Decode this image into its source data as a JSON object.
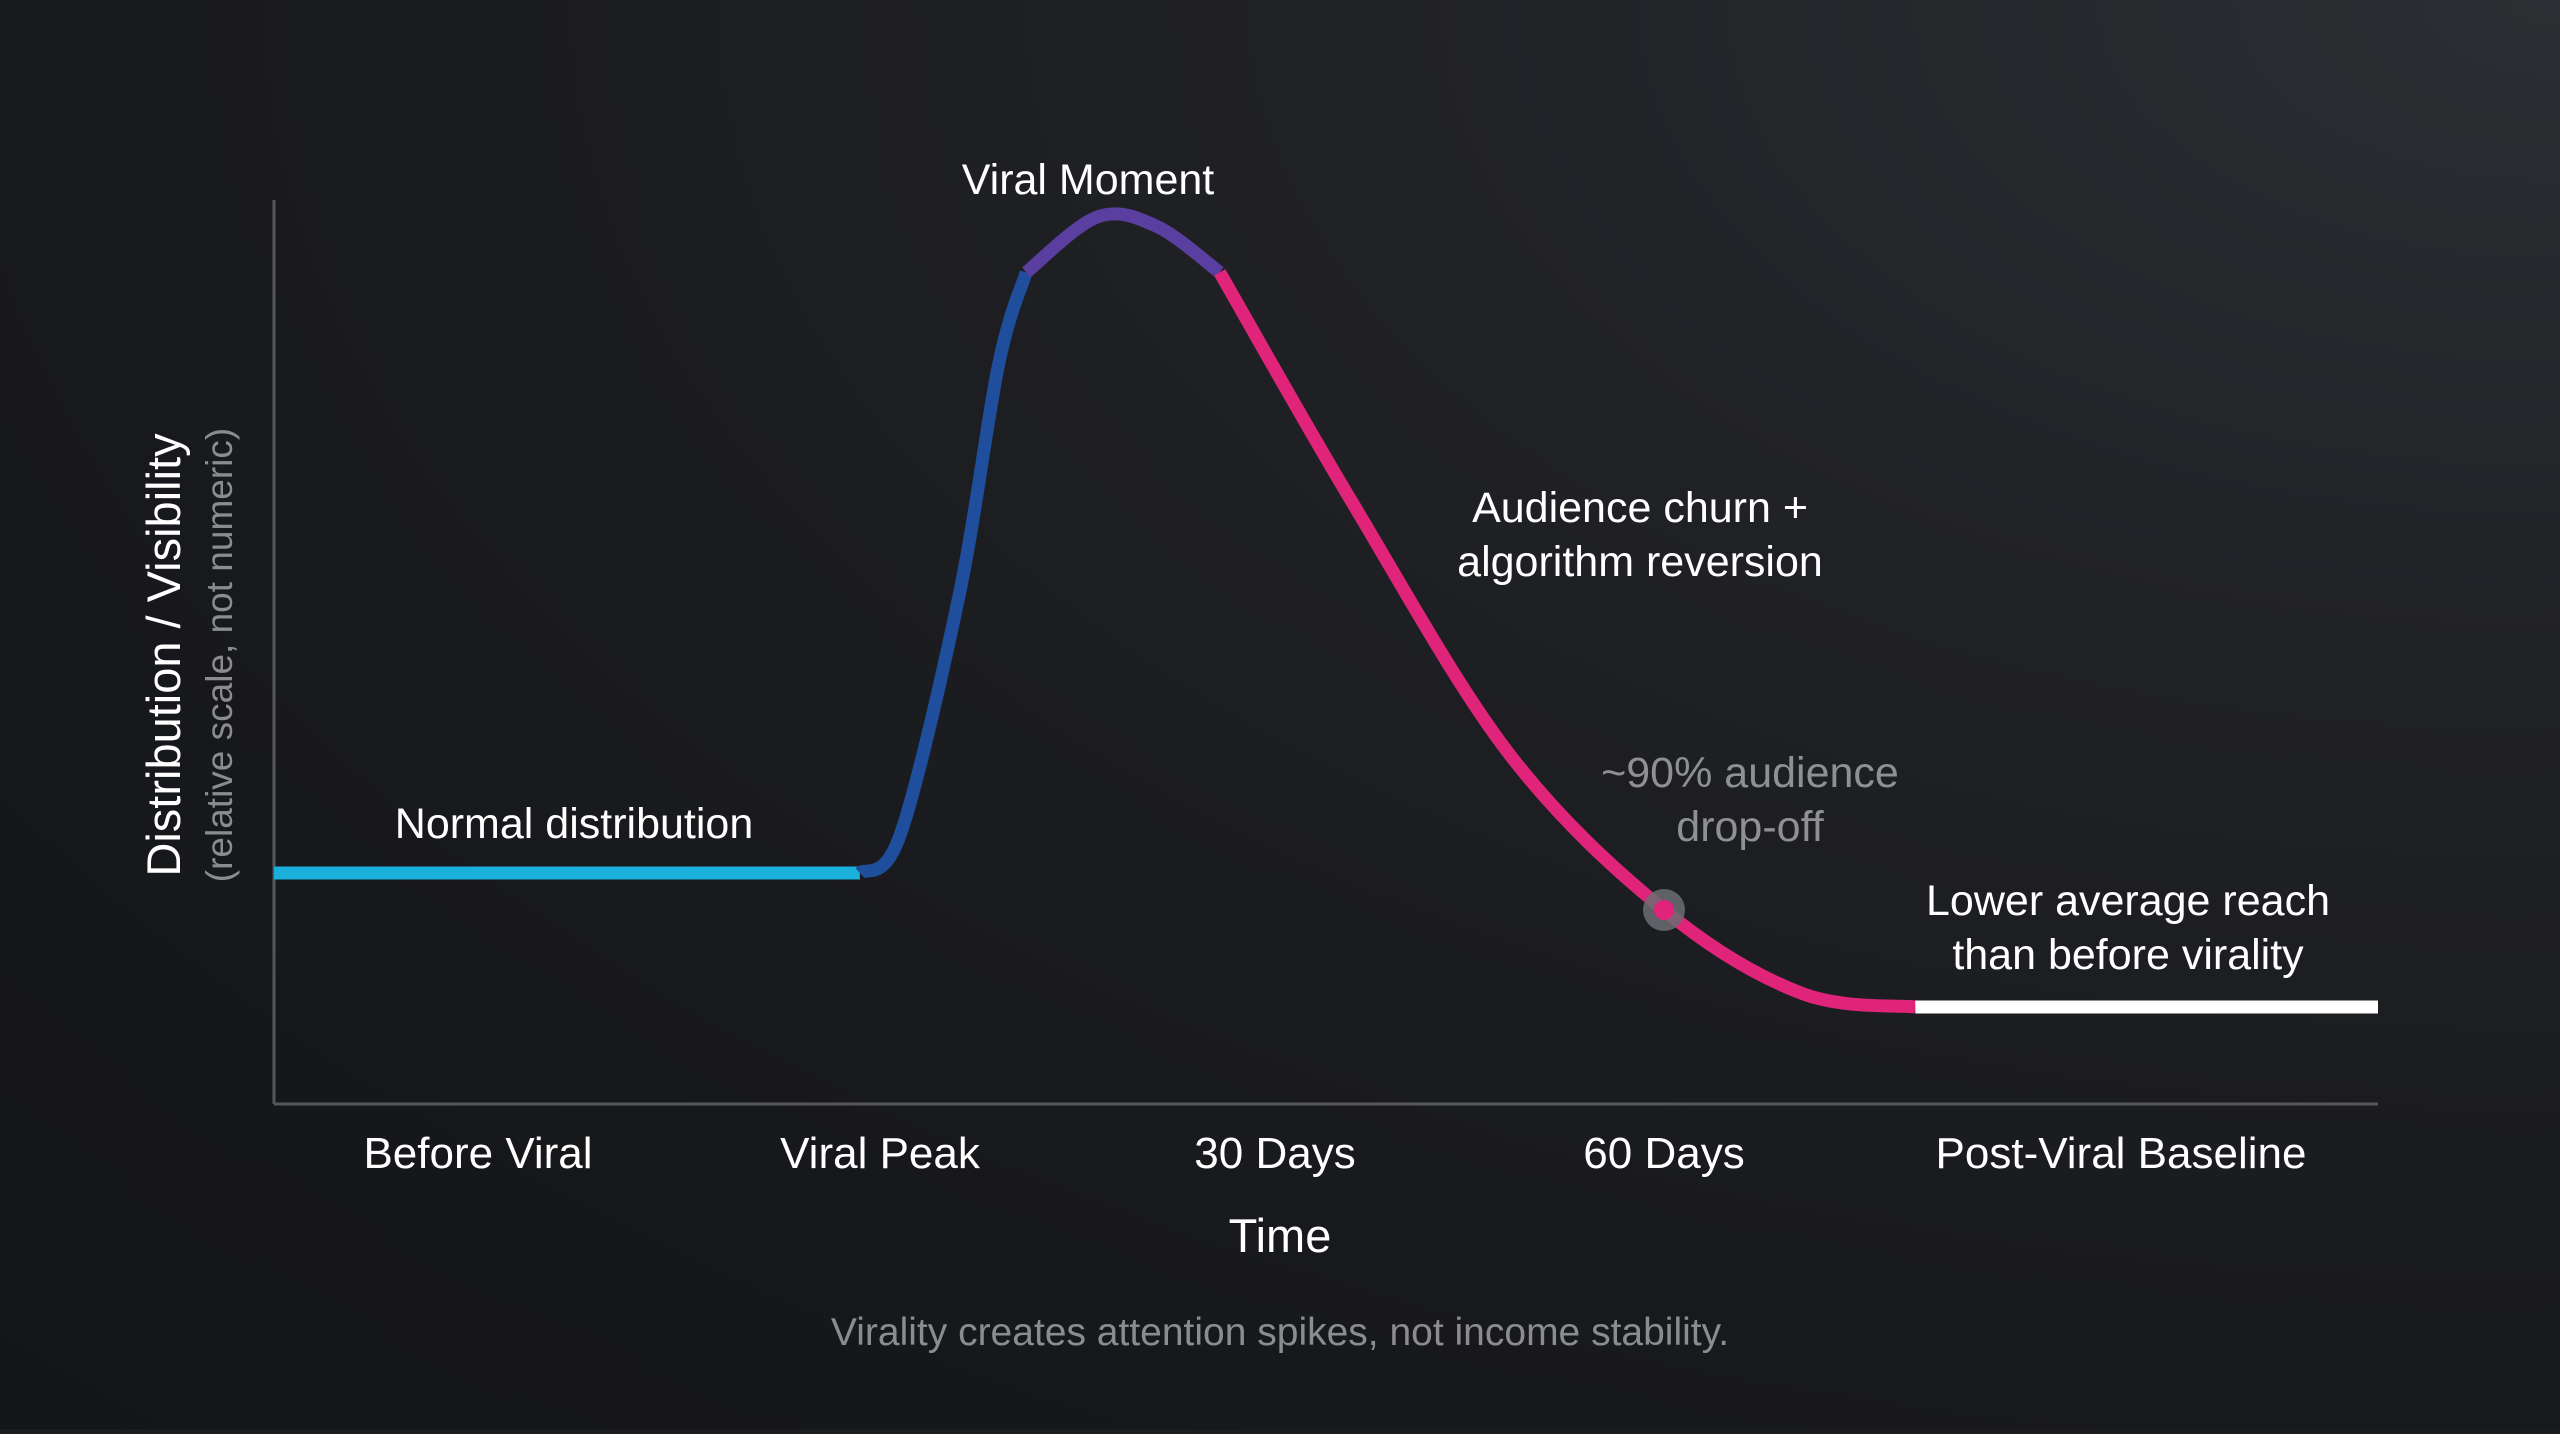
{
  "chart_data": {
    "type": "line",
    "categories": [
      "Before Viral",
      "Viral Peak",
      "30 Days",
      "60 Days",
      "Post-Viral Baseline"
    ],
    "xlabel": "Time",
    "ylabel": "Distribution / Visibility",
    "ylabel_note": "(relative scale, not numeric)",
    "caption": "Virality creates attention spikes, not income stability.",
    "grid": false,
    "legend": "none",
    "ylim": [
      0,
      100
    ],
    "series": [
      {
        "segments": [
          {
            "phase": "normal",
            "color": "#1ab0dc",
            "points": [
              [
                -0.5,
                25
              ],
              [
                0.95,
                25
              ]
            ]
          },
          {
            "phase": "rise",
            "color": "#1f4e9c",
            "points": [
              [
                0.95,
                25
              ],
              [
                1.05,
                29
              ],
              [
                1.2,
                55
              ],
              [
                1.3,
                80
              ],
              [
                1.37,
                90
              ]
            ]
          },
          {
            "phase": "viral-moment",
            "color": "#5b3fa0",
            "points": [
              [
                1.37,
                90
              ],
              [
                1.55,
                96
              ],
              [
                1.7,
                95
              ],
              [
                1.86,
                90
              ]
            ]
          },
          {
            "phase": "decay",
            "color": "#e0247a",
            "points": [
              [
                1.86,
                90
              ],
              [
                2.2,
                65
              ],
              [
                2.6,
                38
              ],
              [
                3.0,
                21
              ],
              [
                3.3,
                12
              ],
              [
                3.55,
                10.5
              ]
            ]
          },
          {
            "phase": "baseline",
            "color": "#ffffff",
            "points": [
              [
                3.55,
                10.5
              ],
              [
                4.65,
                10.5
              ]
            ]
          }
        ]
      }
    ],
    "marker": {
      "x": 3.0,
      "y": 21,
      "color": "#e0247a"
    },
    "annotations": [
      {
        "id": "viral-moment",
        "text": "Viral Moment"
      },
      {
        "id": "normal",
        "text": "Normal distribution"
      },
      {
        "id": "churn",
        "lines": [
          "Audience churn +",
          "algorithm reversion"
        ]
      },
      {
        "id": "dropoff",
        "lines": [
          "~90% audience",
          "drop-off"
        ]
      },
      {
        "id": "lower-reach",
        "lines": [
          "Lower average reach",
          "than before virality"
        ]
      }
    ]
  }
}
